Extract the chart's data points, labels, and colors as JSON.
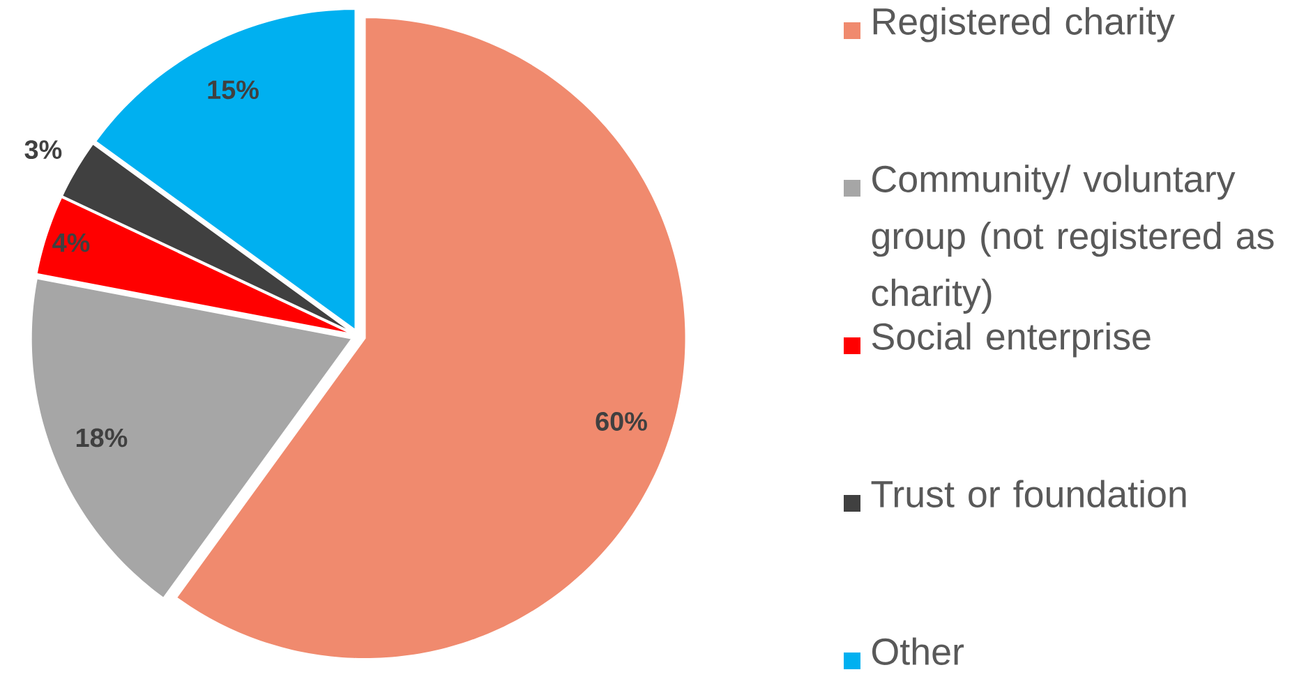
{
  "chart_data": {
    "type": "pie",
    "categories": [
      "Registered charity",
      "Community/ voluntary group (not registered as charity)",
      "Social enterprise",
      "Trust or foundation",
      "Other"
    ],
    "values": [
      60,
      18,
      4,
      3,
      15
    ],
    "colors": [
      "#f08a6e",
      "#a6a6a6",
      "#ff0000",
      "#404040",
      "#00b0f0"
    ],
    "value_labels": [
      "60%",
      "18%",
      "4%",
      "3%",
      "15%"
    ],
    "legend": "right"
  }
}
